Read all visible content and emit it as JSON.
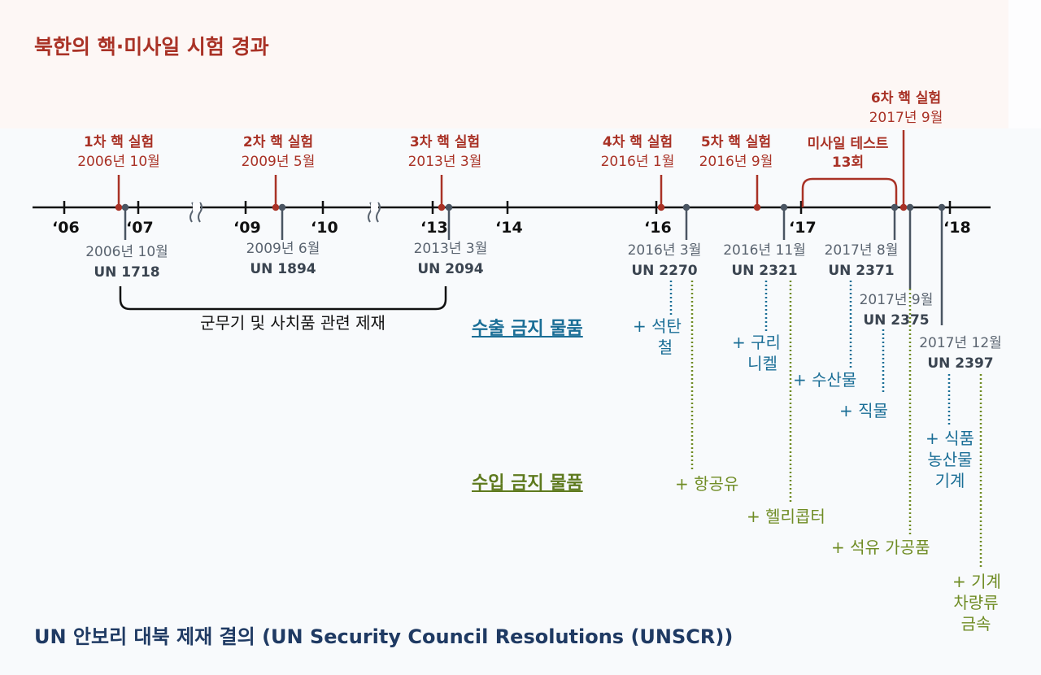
{
  "title": "북한의 핵·미사일 시험 경과",
  "footer": "UN 안보리 대북 제재 결의 (UN Security Council Resolutions (UNSCR))",
  "colors": {
    "test_red": "#a93226",
    "resolution_gray": "#4a5562",
    "export_blue": "#1a6e96",
    "import_green": "#6f8c24",
    "footer_navy": "#1f3a63"
  },
  "year_ticks": [
    "‘06",
    "‘07",
    "‘09",
    "‘10",
    "‘13",
    "‘14",
    "‘16",
    "‘17",
    "‘18"
  ],
  "tests": [
    {
      "label": "1차 핵 실험",
      "date": "2006년 10월"
    },
    {
      "label": "2차 핵 실험",
      "date": "2009년 5월"
    },
    {
      "label": "3차 핵 실험",
      "date": "2013년 3월"
    },
    {
      "label": "4차 핵 실험",
      "date": "2016년 1월"
    },
    {
      "label": "5차 핵 실험",
      "date": "2016년 9월"
    },
    {
      "label": "6차 핵 실험",
      "date": "2017년 9월"
    }
  ],
  "missile": {
    "line1": "미사일 테스트",
    "line2": "13회"
  },
  "resolutions": [
    {
      "date": "2006년 10월",
      "code": "UN 1718"
    },
    {
      "date": "2009년 6월",
      "code": "UN 1894"
    },
    {
      "date": "2013년 3월",
      "code": "UN 2094"
    },
    {
      "date": "2016년 3월",
      "code": "UN 2270"
    },
    {
      "date": "2016년 11월",
      "code": "UN 2321"
    },
    {
      "date": "2017년 8월",
      "code": "UN 2371"
    },
    {
      "date": "2017년 9월",
      "code": "UN 2375"
    },
    {
      "date": "2017년 12월",
      "code": "UN 2397"
    }
  ],
  "sanctions_note": "군무기 및 사치품 관련 제재",
  "export_heading": "수출 금지 물품",
  "import_heading": "수입 금지 물품",
  "export_items": [
    {
      "line1": "+ 석탄",
      "line2": "철"
    },
    {
      "line1": "+ 구리",
      "line2": "니켈"
    },
    {
      "line1": "+ 수산물",
      "line2": ""
    },
    {
      "line1": "+ 직물",
      "line2": ""
    },
    {
      "line1": "+ 식품",
      "line2": "농산물",
      "line3": "기계"
    }
  ],
  "import_items": [
    {
      "line1": "+ 항공유"
    },
    {
      "line1": "+ 헬리콥터"
    },
    {
      "line1": "+ 석유 가공품"
    },
    {
      "line1": "+ 기계",
      "line2": "차량류",
      "line3": "금속"
    }
  ]
}
